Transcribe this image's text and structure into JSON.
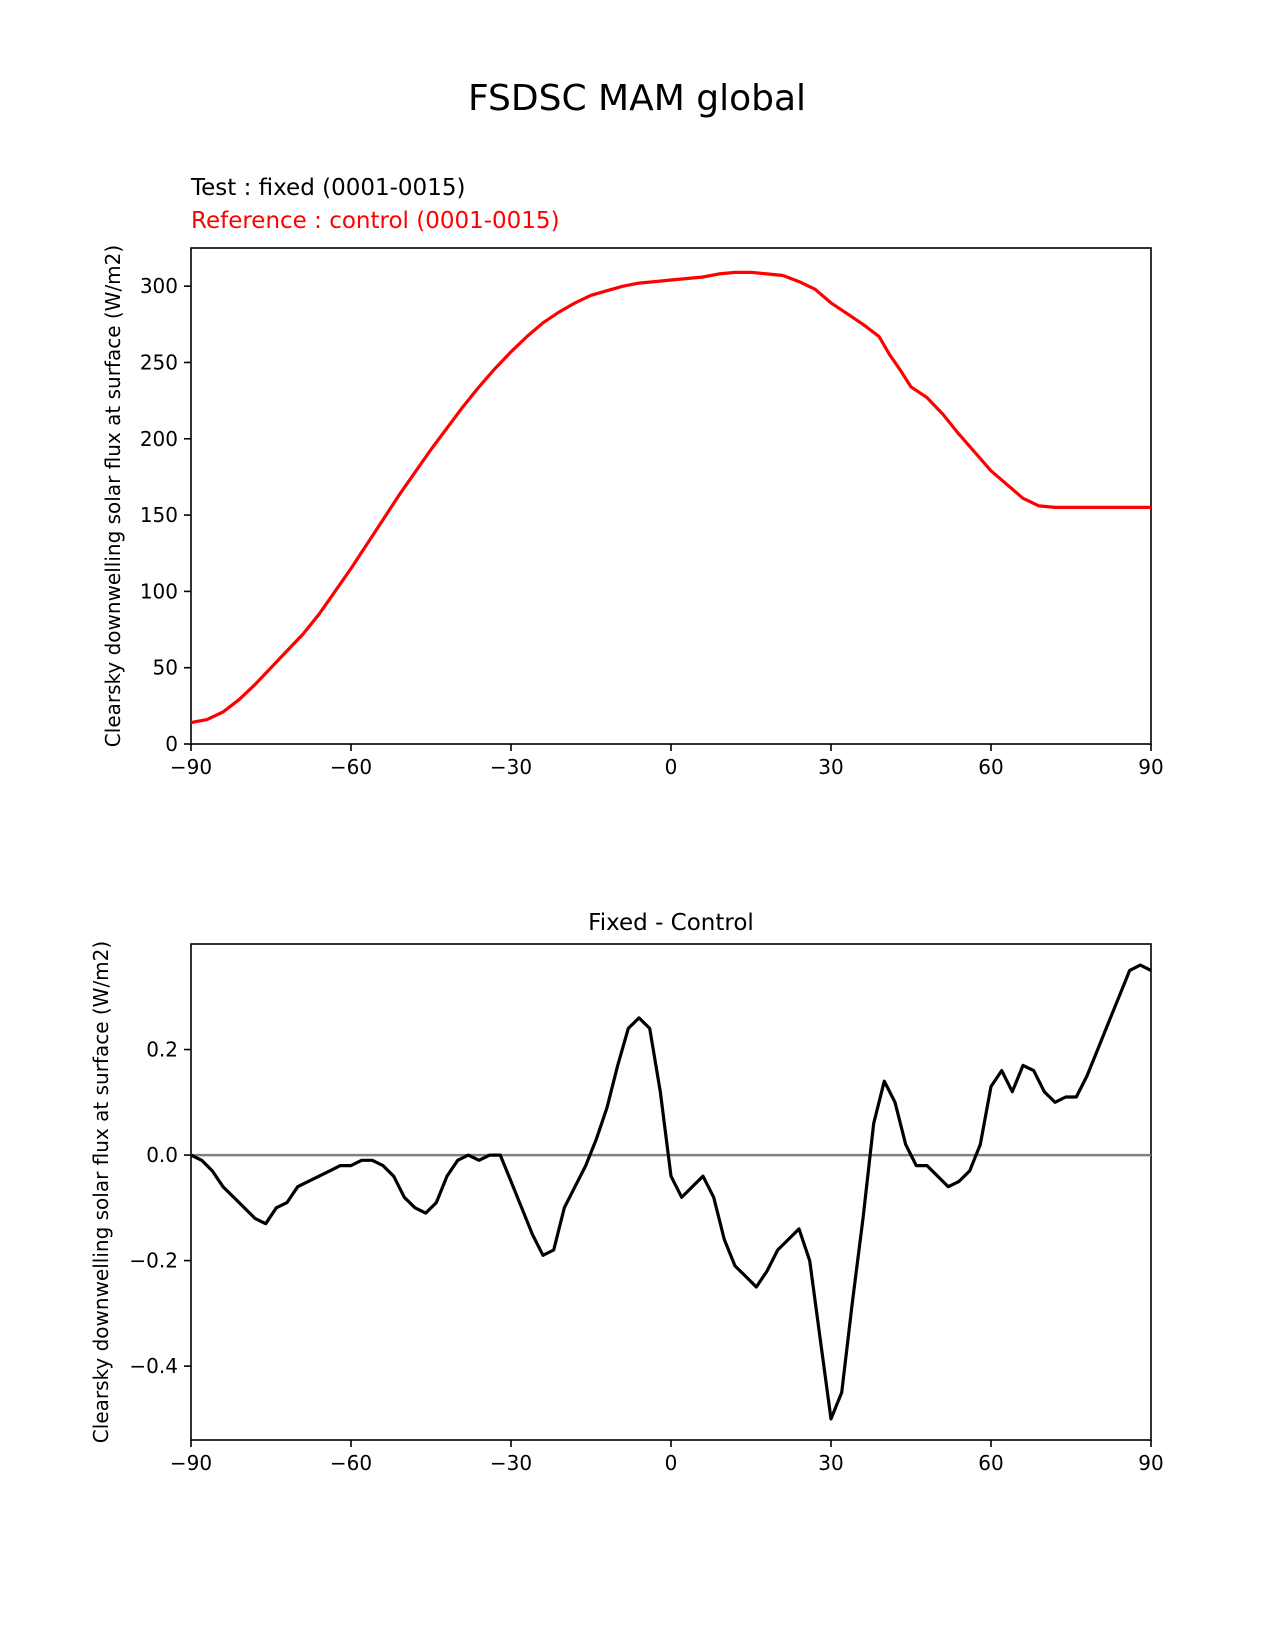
{
  "suptitle": "FSDSC MAM global",
  "chart_data": [
    {
      "type": "line",
      "title_test": "Test : fixed (0001-0015)",
      "title_reference": "Reference : control (0001-0015)",
      "ylabel": "Clearsky downwelling solar flux at surface (W/m2)",
      "xlabel": "",
      "xlim": [
        -90,
        90
      ],
      "ylim": [
        0,
        325
      ],
      "x_ticks": [
        -90,
        -60,
        -30,
        0,
        30,
        60,
        90
      ],
      "x_tick_labels": [
        "−90",
        "−60",
        "−30",
        "0",
        "30",
        "60",
        "90"
      ],
      "y_ticks": [
        0,
        50,
        100,
        150,
        200,
        250,
        300
      ],
      "y_tick_labels": [
        "0",
        "50",
        "100",
        "150",
        "200",
        "250",
        "300"
      ],
      "grid": false,
      "series": [
        {
          "color": "#ff0000",
          "x": [
            -90,
            -87,
            -84,
            -81,
            -78,
            -75,
            -72,
            -69,
            -66,
            -63,
            -60,
            -57,
            -54,
            -51,
            -48,
            -45,
            -42,
            -39,
            -36,
            -33,
            -30,
            -27,
            -24,
            -21,
            -18,
            -15,
            -12,
            -9,
            -6,
            -3,
            0,
            3,
            6,
            9,
            12,
            15,
            18,
            21,
            24,
            27,
            30,
            33,
            36,
            39,
            41,
            43,
            45,
            48,
            51,
            54,
            57,
            60,
            63,
            66,
            69,
            72,
            75,
            78,
            81,
            84,
            87,
            90
          ],
          "y": [
            14,
            16,
            21,
            29,
            39,
            50,
            61,
            72,
            85,
            100,
            115,
            131,
            147,
            163,
            178,
            193,
            207,
            221,
            234,
            246,
            257,
            267,
            276,
            283,
            289,
            294,
            297,
            300,
            302,
            303,
            304,
            305,
            306,
            308,
            309,
            309,
            308,
            307,
            303,
            298,
            289,
            282,
            275,
            267,
            255,
            245,
            234,
            227,
            216,
            203,
            191,
            179,
            170,
            161,
            156,
            155,
            155,
            155,
            155,
            155,
            155,
            155
          ]
        }
      ]
    },
    {
      "type": "line",
      "title": "Fixed - Control",
      "ylabel": "Clearsky downwelling solar flux at surface (W/m2)",
      "xlabel": "",
      "xlim": [
        -90,
        90
      ],
      "ylim": [
        -0.54,
        0.4
      ],
      "x_ticks": [
        -90,
        -60,
        -30,
        0,
        30,
        60,
        90
      ],
      "x_tick_labels": [
        "−90",
        "−60",
        "−30",
        "0",
        "30",
        "60",
        "90"
      ],
      "y_ticks": [
        -0.4,
        -0.2,
        0.0,
        0.2
      ],
      "y_tick_labels": [
        "−0.4",
        "−0.2",
        "0.0",
        "0.2"
      ],
      "zero_line": {
        "y": 0,
        "color": "#808080"
      },
      "grid": false,
      "series": [
        {
          "color": "#000000",
          "x": [
            -90,
            -88,
            -86,
            -84,
            -82,
            -80,
            -78,
            -76,
            -74,
            -72,
            -70,
            -68,
            -66,
            -64,
            -62,
            -60,
            -58,
            -56,
            -54,
            -52,
            -50,
            -48,
            -46,
            -44,
            -42,
            -40,
            -38,
            -36,
            -34,
            -32,
            -30,
            -28,
            -26,
            -24,
            -22,
            -20,
            -18,
            -16,
            -14,
            -12,
            -10,
            -8,
            -6,
            -4,
            -2,
            0,
            2,
            4,
            6,
            8,
            10,
            12,
            14,
            16,
            18,
            20,
            22,
            24,
            26,
            28,
            30,
            32,
            34,
            36,
            38,
            40,
            42,
            44,
            46,
            48,
            50,
            52,
            54,
            56,
            58,
            60,
            62,
            64,
            66,
            68,
            70,
            72,
            74,
            76,
            78,
            80,
            82,
            84,
            86,
            88,
            90
          ],
          "y": [
            0.0,
            -0.01,
            -0.03,
            -0.06,
            -0.08,
            -0.1,
            -0.12,
            -0.13,
            -0.1,
            -0.09,
            -0.06,
            -0.05,
            -0.04,
            -0.03,
            -0.02,
            -0.02,
            -0.01,
            -0.01,
            -0.02,
            -0.04,
            -0.08,
            -0.1,
            -0.11,
            -0.09,
            -0.04,
            -0.01,
            0.0,
            -0.01,
            0.0,
            0.0,
            -0.05,
            -0.1,
            -0.15,
            -0.19,
            -0.18,
            -0.1,
            -0.06,
            -0.02,
            0.03,
            0.09,
            0.17,
            0.24,
            0.26,
            0.24,
            0.12,
            -0.04,
            -0.08,
            -0.06,
            -0.04,
            -0.08,
            -0.16,
            -0.21,
            -0.23,
            -0.25,
            -0.22,
            -0.18,
            -0.16,
            -0.14,
            -0.2,
            -0.35,
            -0.5,
            -0.45,
            -0.28,
            -0.12,
            0.06,
            0.14,
            0.1,
            0.02,
            -0.02,
            -0.02,
            -0.04,
            -0.06,
            -0.05,
            -0.03,
            0.02,
            0.13,
            0.16,
            0.12,
            0.17,
            0.16,
            0.12,
            0.1,
            0.11,
            0.11,
            0.15,
            0.2,
            0.25,
            0.3,
            0.35,
            0.36,
            0.35
          ]
        }
      ]
    }
  ]
}
